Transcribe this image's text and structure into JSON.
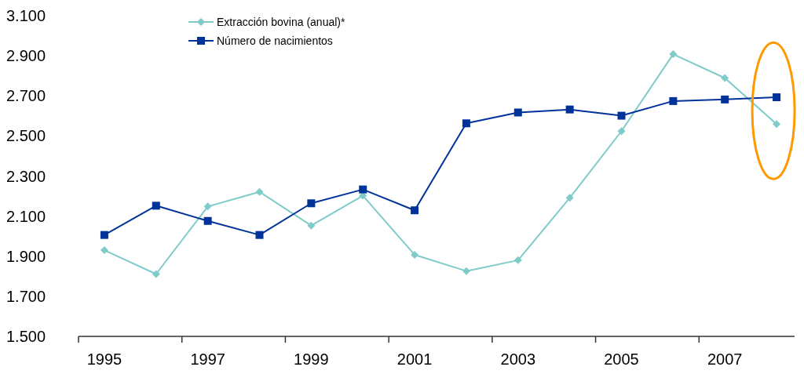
{
  "chart_data": {
    "type": "line",
    "categories": [
      "1995",
      null,
      "1997",
      null,
      "1999",
      null,
      "2001",
      null,
      "2003",
      null,
      "2005",
      null,
      "2007",
      null
    ],
    "series": [
      {
        "name": "Extracción bovina (anual)*",
        "color": "#7fcbc9",
        "marker": "diamond",
        "values": [
          1930,
          1811,
          2148,
          2221,
          2053,
          2202,
          1907,
          1826,
          1880,
          2191,
          2524,
          2908,
          2789,
          2559
        ]
      },
      {
        "name": "Número de nacimientos",
        "color": "#003399",
        "marker": "square",
        "values": [
          2006,
          2152,
          2076,
          2006,
          2164,
          2233,
          2129,
          2563,
          2617,
          2632,
          2601,
          2674,
          2682,
          2693
        ]
      }
    ],
    "ylim": [
      1500,
      3100
    ],
    "yticks": [
      {
        "value": 1500,
        "label": "1.500"
      },
      {
        "value": 1700,
        "label": "1.700"
      },
      {
        "value": 1900,
        "label": "1.900"
      },
      {
        "value": 2100,
        "label": "2.100"
      },
      {
        "value": 2300,
        "label": "2.300"
      },
      {
        "value": 2500,
        "label": "2.500"
      },
      {
        "value": 2700,
        "label": "2.700"
      },
      {
        "value": 2900,
        "label": "2.900"
      },
      {
        "value": 3100,
        "label": "3.100"
      }
    ],
    "grid": false,
    "legend": "top left"
  }
}
